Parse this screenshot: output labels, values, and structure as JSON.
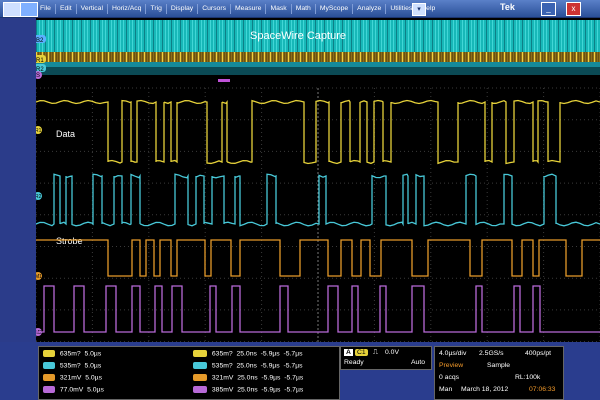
{
  "menubar": {
    "items": [
      "File",
      "Edit",
      "Vertical",
      "Horiz/Acq",
      "Trig",
      "Display",
      "Cursors",
      "Measure",
      "Mask",
      "Math",
      "MyScope",
      "Analyze",
      "Utilities",
      "Help"
    ],
    "brand": "Tek",
    "min_glyph": "_",
    "close_glyph": "x",
    "dd_glyph": "▾"
  },
  "scope": {
    "title": "SpaceWire Capture",
    "data_label": "Data",
    "strobe_label": "Strobe",
    "markers": {
      "b2": "B2",
      "r1": "R1",
      "r2": "R2",
      "s": "S",
      "m1": "M1",
      "m2": "M2"
    }
  },
  "measurements": {
    "left": [
      {
        "tag": "R1",
        "val1": "635m?",
        "val2": "5.0µs",
        "color": "#e6d23a"
      },
      {
        "tag": "R2",
        "val1": "535m?",
        "val2": "5.0µs",
        "color": "#48c8d8"
      },
      {
        "tag": "M1",
        "val1": "321mV",
        "val2": "5.0µs",
        "color": "#e59a2a"
      },
      {
        "tag": "M2",
        "val1": "77.0mV",
        "val2": "5.0µs",
        "color": "#b86ad8"
      }
    ],
    "right": [
      {
        "tag": "Z R1",
        "val1": "635m?",
        "val2": "25.0ns",
        "val3": "-5.9µs",
        "val4": "-5.7µs",
        "color": "#e6d23a"
      },
      {
        "tag": "Z R2",
        "val1": "535m?",
        "val2": "25.0ns",
        "val3": "-5.9µs",
        "val4": "-5.7µs",
        "color": "#48c8d8"
      },
      {
        "tag": "Z M1",
        "val1": "321mV",
        "val2": "25.0ns",
        "val3": "-5.9µs",
        "val4": "-5.7µs",
        "color": "#e59a2a"
      },
      {
        "tag": "Z M2",
        "val1": "385mV",
        "val2": "25.0ns",
        "val3": "-5.9µs",
        "val4": "-5.7µs",
        "color": "#b86ad8"
      }
    ]
  },
  "trigger": {
    "icon_letter": "A",
    "source": "C1",
    "level": "0.0V",
    "state": "Ready",
    "mode": "Auto"
  },
  "acquisition": {
    "timebase": "4.0µs/div",
    "sample_rate": "2.5GS/s",
    "resolution": "400ps/pt",
    "preview": "Preview",
    "mode": "Sample",
    "acqs": "0 acqs",
    "record_length": "RL:100k",
    "source": "Man",
    "date": "March 18, 2012",
    "time": "07:06:33"
  },
  "colors": {
    "ch1": "#e6d23a",
    "ch2": "#48c8d8",
    "m1": "#e59a2a",
    "m2": "#b86ad8",
    "bus": "#1fc6c6"
  }
}
